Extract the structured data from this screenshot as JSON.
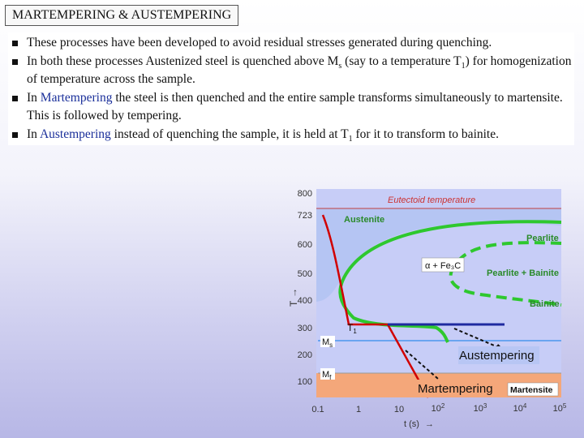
{
  "title": "MARTEMPERING & AUSTEMPERING",
  "bullets": [
    {
      "segments": [
        {
          "text": "These processes have been developed to avoid residual stresses generated during quenching."
        }
      ]
    },
    {
      "segments": [
        {
          "text": "In both these processes Austenized steel is quenched above M"
        },
        {
          "text": "s",
          "sub": true
        },
        {
          "text": " (say to a temperature T"
        },
        {
          "text": "1",
          "sub": true
        },
        {
          "text": ") for homogenization of temperature across the sample."
        }
      ]
    },
    {
      "segments": [
        {
          "text": "In "
        },
        {
          "text": "Martempering",
          "hl": true
        },
        {
          "text": " the steel is then quenched and the entire sample transforms simultaneously to martensite. This is followed by tempering."
        }
      ]
    },
    {
      "segments": [
        {
          "text": "In "
        },
        {
          "text": "Austempering",
          "hl": true
        },
        {
          "text": " instead of quenching the sample, it is held at T"
        },
        {
          "text": "1",
          "sub": true
        },
        {
          "text": " for it to transform to bainite."
        }
      ]
    }
  ],
  "diagram": {
    "y_axis": {
      "label": "T",
      "arrow": "↑",
      "ticks": [
        "800",
        "723",
        "600",
        "500",
        "400",
        "300",
        "200",
        "100"
      ]
    },
    "x_axis": {
      "label": "t (s)",
      "arrow": "→",
      "ticks": [
        {
          "base": "0.1",
          "exp": ""
        },
        {
          "base": "1",
          "exp": ""
        },
        {
          "base": "10",
          "exp": ""
        },
        {
          "base": "10",
          "exp": "2"
        },
        {
          "base": "10",
          "exp": "3"
        },
        {
          "base": "10",
          "exp": "4"
        },
        {
          "base": "10",
          "exp": "5"
        }
      ]
    },
    "labels": {
      "eutectoid": "Eutectoid temperature",
      "austenite": "Austenite",
      "pearlite": "Pearlite",
      "alpha_fe3c": "α + Fe₃C",
      "pearlite_bainite": "Pearlite + Bainite",
      "bainite": "Bainite",
      "t1": "T",
      "t1_sub": "1",
      "ms": "M",
      "ms_sub": "s",
      "mf": "M",
      "mf_sub": "f",
      "austempering": "Austempering",
      "martempering": "Martempering",
      "martensite": "Martensite"
    },
    "colors": {
      "plot_bg": "#c7cdf7",
      "austenite_region": "#a8bff0",
      "martensite_band": "#f4a77a",
      "green_curve": "#2ec82e",
      "red_line": "#d10000",
      "ms_line": "#6aa4f0",
      "hold_line": "#1f2aa0",
      "label_green": "#2a8a2a"
    }
  }
}
